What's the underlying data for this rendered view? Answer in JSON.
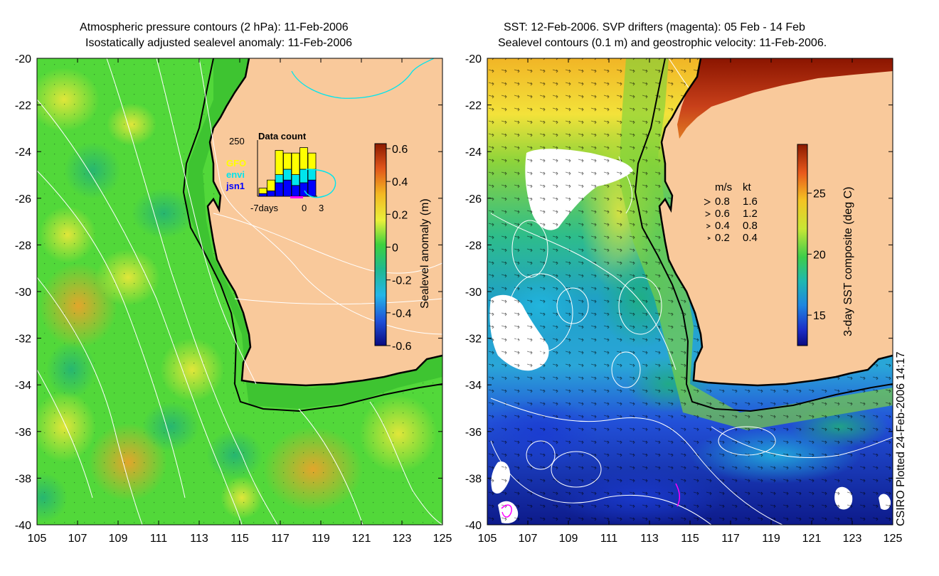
{
  "left_panel": {
    "title_line1": "Atmospheric pressure contours (2 hPa): 11-Feb-2006",
    "title_line2": "Isostatically adjusted sealevel anomaly: 11-Feb-2006",
    "colorbar": {
      "label": "Sealevel anomaly (m)",
      "ticks": [
        "0.6",
        "0.4",
        "0.2",
        "0",
        "-0.2",
        "-0.4",
        "-0.6"
      ],
      "range": [
        -0.6,
        0.6
      ]
    },
    "inset": {
      "title": "Data count",
      "ymax_label": "250",
      "legend": [
        {
          "name": "GFO",
          "color": "#ffff00"
        },
        {
          "name": "envi",
          "color": "#00e5ee"
        },
        {
          "name": "jsn1",
          "color": "#0000ff"
        }
      ],
      "x_labels": [
        "-7days",
        "0",
        "3"
      ],
      "bars": [
        {
          "jsn1": 0.05,
          "envi": 0.0,
          "gfo": 0.1
        },
        {
          "jsn1": 0.1,
          "envi": 0.0,
          "gfo": 0.2
        },
        {
          "jsn1": 0.25,
          "envi": 0.15,
          "gfo": 0.45
        },
        {
          "jsn1": 0.3,
          "envi": 0.2,
          "gfo": 0.3
        },
        {
          "jsn1": 0.2,
          "envi": 0.2,
          "gfo": 0.4
        },
        {
          "jsn1": 0.25,
          "envi": 0.25,
          "gfo": 0.4
        },
        {
          "jsn1": 0.3,
          "envi": 0.2,
          "gfo": 0.3
        }
      ]
    }
  },
  "right_panel": {
    "title_line1": "SST: 12-Feb-2006. SVP drifters (magenta): 05 Feb - 14 Feb",
    "title_line2": "Sealevel contours (0.1 m) and geostrophic velocity: 11-Feb-2006.",
    "colorbar": {
      "label": "3-day SST composite (deg C)",
      "ticks": [
        "25",
        "20",
        "15"
      ],
      "range": [
        12.5,
        29
      ]
    },
    "speed_legend": {
      "header_ms": "m/s",
      "header_kt": "kt",
      "rows": [
        {
          "ms": "0.8",
          "kt": "1.6"
        },
        {
          "ms": "0.6",
          "kt": "1.2"
        },
        {
          "ms": "0.4",
          "kt": "0.8"
        },
        {
          "ms": "0.2",
          "kt": "0.4"
        }
      ]
    }
  },
  "axes": {
    "lon_ticks": [
      "105",
      "107",
      "109",
      "111",
      "113",
      "115",
      "117",
      "119",
      "121",
      "123",
      "125"
    ],
    "lat_ticks": [
      "-20",
      "-22",
      "-24",
      "-26",
      "-28",
      "-30",
      "-32",
      "-34",
      "-36",
      "-38",
      "-40"
    ],
    "lon_range": [
      105,
      125
    ],
    "lat_range": [
      -40,
      -20
    ]
  },
  "credit": "CSIRO Plotted 24-Feb-2006 14:17",
  "colors": {
    "land": "#f9c99b",
    "ocean_green": "#52d83a",
    "shelf_green": "#3ec431",
    "contour_white": "#ffffff",
    "coast_black": "#000000",
    "drifter_magenta": "#ff00ff",
    "cyan_contour": "#00e5ee"
  }
}
